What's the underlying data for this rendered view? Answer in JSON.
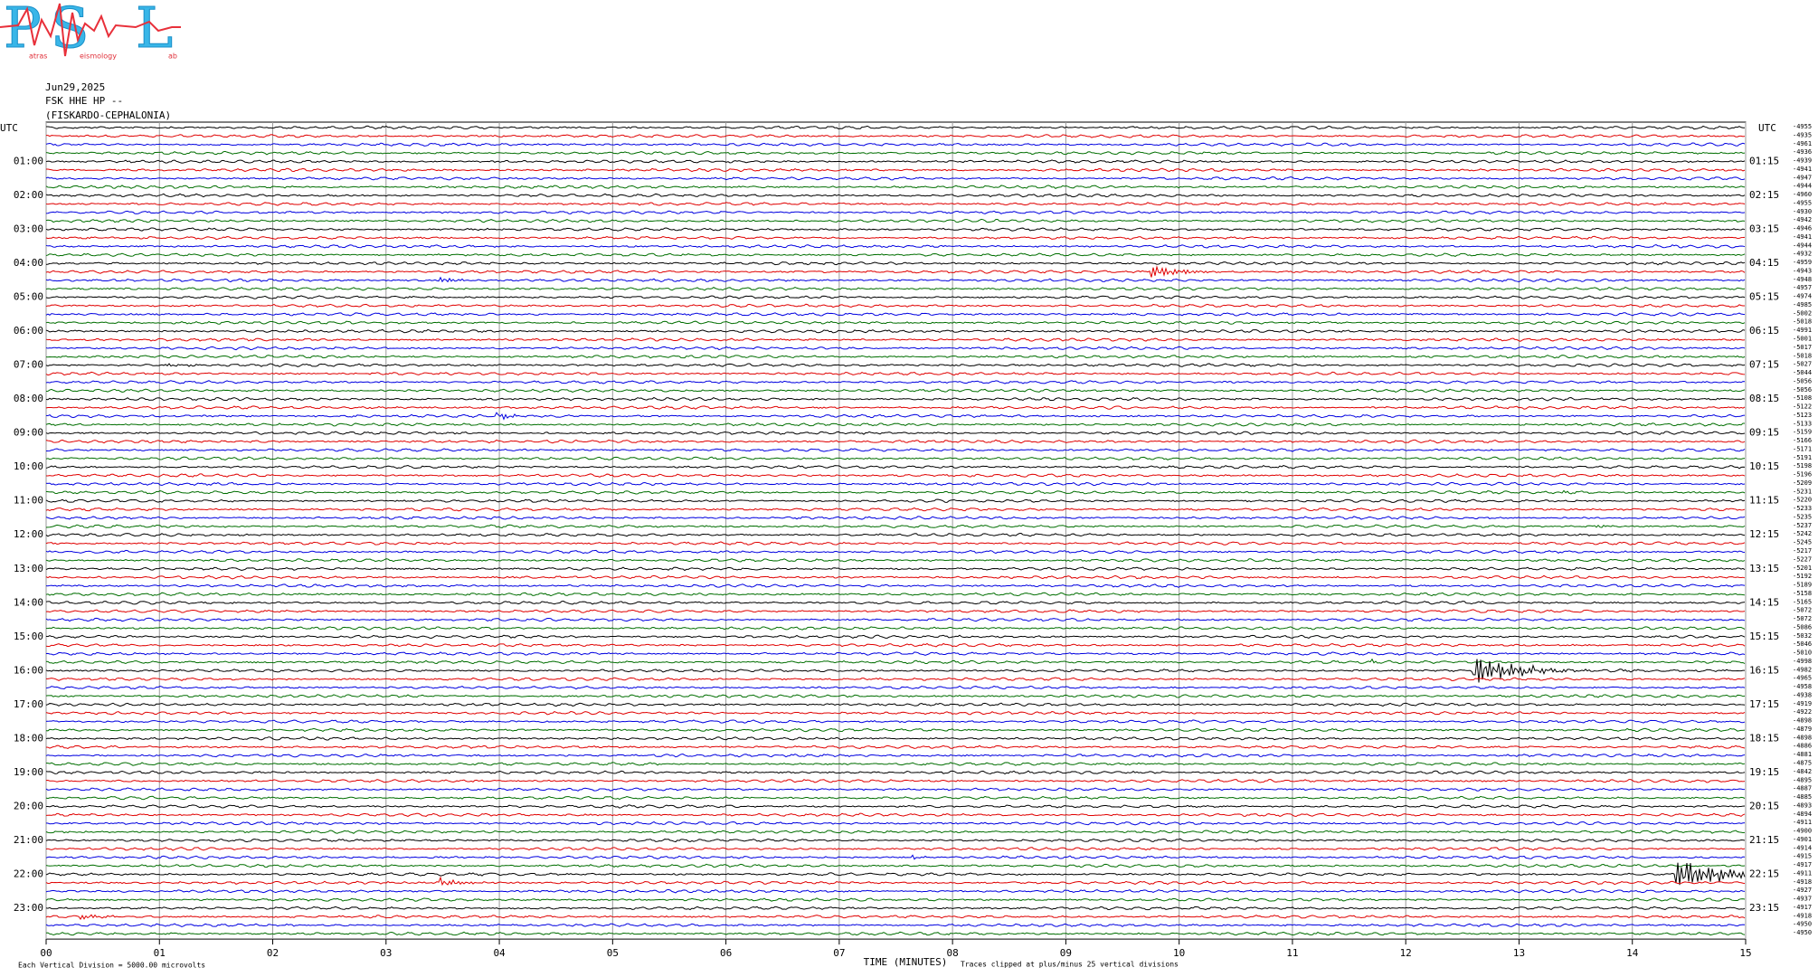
{
  "logo": {
    "letters": [
      "P",
      "S",
      "L"
    ],
    "captions": [
      "atras",
      "eismology",
      "ab"
    ]
  },
  "header": {
    "date": "Jun29,2025",
    "channel": "FSK HHE HP --",
    "station": "(FISKARDO-CEPHALONIA)"
  },
  "left_axis": {
    "title": "UTC",
    "labels": [
      "01:00",
      "02:00",
      "03:00",
      "04:00",
      "05:00",
      "06:00",
      "07:00",
      "08:00",
      "09:00",
      "10:00",
      "11:00",
      "12:00",
      "13:00",
      "14:00",
      "15:00",
      "16:00",
      "17:00",
      "18:00",
      "19:00",
      "20:00",
      "21:00",
      "22:00",
      "23:00"
    ]
  },
  "right_axis": {
    "title": "UTC",
    "labels": [
      "01:15",
      "02:15",
      "03:15",
      "04:15",
      "05:15",
      "06:15",
      "07:15",
      "08:15",
      "09:15",
      "10:15",
      "11:15",
      "12:15",
      "13:15",
      "14:15",
      "15:15",
      "16:15",
      "17:15",
      "18:15",
      "19:15",
      "20:15",
      "21:15",
      "22:15",
      "23:15"
    ]
  },
  "trace_colors": [
    "#000000",
    "#e00000",
    "#0000e0",
    "#006e00"
  ],
  "trace_offsets": [
    -4955,
    -4935,
    -4961,
    -4936,
    -4939,
    -4941,
    -4947,
    -4944,
    -4960,
    -4955,
    -4930,
    -4942,
    -4946,
    -4941,
    -4944,
    -4932,
    -4959,
    -4943,
    -4948,
    -4957,
    -4974,
    -4985,
    -5002,
    -5018,
    -4991,
    -5001,
    -5017,
    -5018,
    -5027,
    -5044,
    -5056,
    -5056,
    -5108,
    -5122,
    -5123,
    -5133,
    -5159,
    -5166,
    -5171,
    -5191,
    -5198,
    -5196,
    -5209,
    -5231,
    -5220,
    -5233,
    -5235,
    -5237,
    -5242,
    -5245,
    -5217,
    -5227,
    -5201,
    -5192,
    -5189,
    -5158,
    -5165,
    -5072,
    -5072,
    -5086,
    -5032,
    -5046,
    -5010,
    -4998,
    -4982,
    -4965,
    -4958,
    -4938,
    -4919,
    -4922,
    -4898,
    -4879,
    -4898,
    -4886,
    -4881,
    -4875,
    -4842,
    -4895,
    -4887,
    -4885,
    -4893,
    -4894,
    -4911,
    -4900,
    -4901,
    -4914,
    -4915,
    -4917,
    -4911,
    -4918,
    -4927,
    -4937,
    -4917,
    -4918,
    -4950,
    -4950
  ],
  "x_axis": {
    "title": "TIME (MINUTES)",
    "ticks": [
      "00",
      "01",
      "02",
      "03",
      "04",
      "05",
      "06",
      "07",
      "08",
      "09",
      "10",
      "11",
      "12",
      "13",
      "14",
      "15"
    ]
  },
  "footer": {
    "scale_note": "Each Vertical Division = 5000.00 microvolts",
    "clip_note": "Traces clipped at plus/minus 25 vertical divisions"
  }
}
